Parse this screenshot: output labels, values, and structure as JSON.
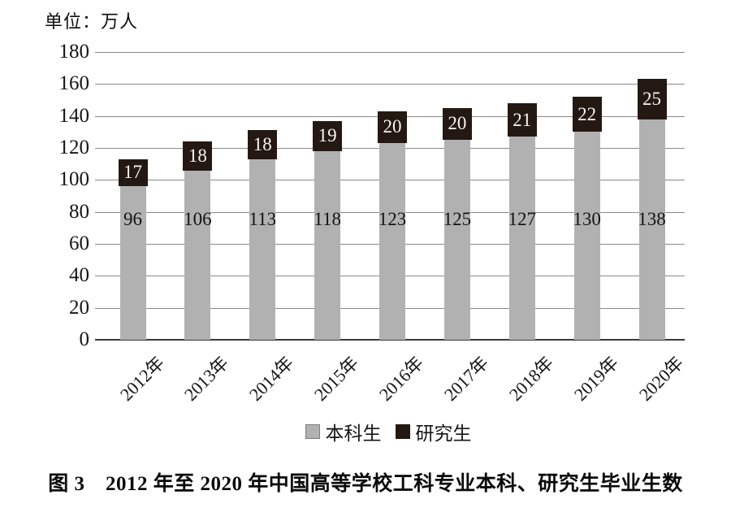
{
  "unit_label": "单位：万人",
  "caption": "图 3　2012 年至 2020 年中国高等学校工科专业本科、研究生毕业生数",
  "legend": {
    "items": [
      {
        "label": "本科生",
        "color": "#b1b1b1"
      },
      {
        "label": "研究生",
        "color": "#241812"
      }
    ]
  },
  "chart_data": {
    "type": "bar",
    "stacked": true,
    "title": "图 3　2012 年至 2020 年中国高等学校工科专业本科、研究生毕业生数",
    "unit": "万人",
    "categories": [
      "2012年",
      "2013年",
      "2014年",
      "2015年",
      "2016年",
      "2017年",
      "2018年",
      "2019年",
      "2020年"
    ],
    "series": [
      {
        "name": "本科生",
        "color": "#b1b1b1",
        "label_color": "#141414",
        "values": [
          96,
          106,
          113,
          118,
          123,
          125,
          127,
          130,
          138
        ]
      },
      {
        "name": "研究生",
        "color": "#241812",
        "label_color": "#f7f4f0",
        "values": [
          17,
          18,
          18,
          19,
          20,
          20,
          21,
          22,
          25
        ]
      }
    ],
    "ylim": [
      0,
      180
    ],
    "yticks": [
      0,
      20,
      40,
      60,
      80,
      100,
      120,
      140,
      160,
      180
    ],
    "grid": true,
    "gridline_color": "#8a8a8a",
    "legend_position": "bottom"
  }
}
